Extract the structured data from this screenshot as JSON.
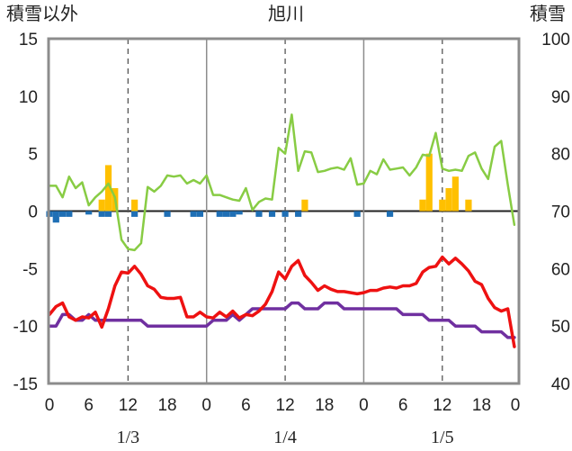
{
  "chart_data": {
    "type": "line",
    "title": "旭川",
    "left_axis_label": "積雪以外",
    "right_axis_label": "積雪",
    "left_ylim": [
      -15,
      15
    ],
    "left_yticks": [
      "15",
      "10",
      "5",
      "0",
      "-5",
      "-10",
      "-15"
    ],
    "right_ylim": [
      40,
      100
    ],
    "right_yticks": [
      "100",
      "90",
      "80",
      "70",
      "60",
      "50",
      "40"
    ],
    "xlim": [
      0,
      71
    ],
    "x_tick_labels": [
      "0",
      "6",
      "12",
      "18",
      "0",
      "6",
      "12",
      "18",
      "0",
      "6",
      "12",
      "18",
      "0"
    ],
    "x_tick_hours": [
      0,
      6,
      12,
      18,
      24,
      30,
      36,
      42,
      48,
      54,
      60,
      66,
      72
    ],
    "day_labels": [
      {
        "label": "1/3",
        "hour": 12
      },
      {
        "label": "1/4",
        "hour": 36
      },
      {
        "label": "1/5",
        "hour": 60
      }
    ],
    "grid": "dashed vertical at 12h, solid vertical at day boundaries",
    "colors": {
      "temperature": "#ee1111",
      "snow_depth": "#7030a0",
      "wind_speed": "#88cc44",
      "snowfall": "#ffc000",
      "precip_neg": "#1f6fb5"
    },
    "temperature": [
      -9,
      -8.3,
      -8,
      -9.2,
      -9.5,
      -9.2,
      -9.3,
      -8.8,
      -10.1,
      -8.5,
      -6.5,
      -5.3,
      -5.4,
      -4.8,
      -5.5,
      -6.5,
      -6.8,
      -7.5,
      -7.6,
      -7.6,
      -7.5,
      -9.2,
      -9.2,
      -8.8,
      -9.2,
      -9.3,
      -8.8,
      -9.2,
      -8.7,
      -9.3,
      -9,
      -9.1,
      -8.7,
      -8.1,
      -7,
      -5.3,
      -5.9,
      -4.8,
      -4.3,
      -5.6,
      -6.2,
      -6.9,
      -6.5,
      -6.8,
      -7,
      -7,
      -7.1,
      -7.2,
      -7.1,
      -6.9,
      -6.9,
      -6.7,
      -6.6,
      -6.7,
      -6.5,
      -6.5,
      -6.3,
      -5.3,
      -4.9,
      -4.8,
      -4,
      -4.6,
      -4.1,
      -4.6,
      -5.2,
      -6.1,
      -6.4,
      -7.6,
      -8.4,
      -8.7,
      -8.5,
      -11.8
    ],
    "snow_depth": [
      50,
      50,
      52,
      52,
      51,
      51,
      52,
      51,
      51,
      51,
      51,
      51,
      51,
      51,
      51,
      50,
      50,
      50,
      50,
      50,
      50,
      50,
      50,
      50,
      50,
      51,
      51,
      51,
      52,
      51,
      52,
      53,
      53,
      53,
      53,
      53,
      53,
      54,
      54,
      53,
      53,
      53,
      54,
      54,
      54,
      53,
      53,
      53,
      53,
      53,
      53,
      53,
      53,
      53,
      52,
      52,
      52,
      52,
      51,
      51,
      51,
      51,
      50,
      50,
      50,
      50,
      49,
      49,
      49,
      49,
      48,
      48
    ],
    "wind_speed": [
      2.2,
      2.2,
      1.2,
      3,
      2,
      2.5,
      0.5,
      1.2,
      1.7,
      2.4,
      1.2,
      -2.5,
      -3.3,
      -3.4,
      -2.8,
      2.1,
      1.7,
      2.2,
      3.1,
      3,
      3.1,
      2.4,
      2.7,
      2.4,
      3.1,
      1.4,
      1.4,
      1.2,
      1,
      0.9,
      2,
      0.1,
      0.8,
      1.1,
      1,
      5.5,
      5,
      8.4,
      3.5,
      5.2,
      5.1,
      3.4,
      3.5,
      3.7,
      3.8,
      3.6,
      4.6,
      2.3,
      2.4,
      3.5,
      3.2,
      4.5,
      3.6,
      3.7,
      3.8,
      3.1,
      3.8,
      4.9,
      4.8,
      6.8,
      3.7,
      3.5,
      3.6,
      3.5,
      4.8,
      5.1,
      3.7,
      2.8,
      5.6,
      6.1,
      2.3,
      -1.2
    ],
    "snowfall": [
      0,
      0,
      0,
      0,
      0,
      0,
      0,
      0,
      1,
      4,
      2,
      0,
      0,
      1,
      0,
      0,
      0,
      0,
      0,
      0,
      0,
      0,
      0,
      0,
      0,
      0,
      0,
      0,
      0,
      0,
      0,
      0,
      0,
      0,
      0,
      0,
      0,
      0,
      0,
      1,
      0,
      0,
      0,
      0,
      0,
      0,
      0,
      0,
      0,
      0,
      0,
      0,
      0,
      0,
      0,
      0,
      0,
      1,
      5,
      0,
      1,
      2,
      3,
      0,
      1,
      0,
      0,
      0,
      0,
      0,
      0,
      0
    ],
    "precip_neg": [
      -0.5,
      -1,
      -0.5,
      -0.5,
      0,
      0,
      -0.3,
      0,
      -0.5,
      -0.5,
      0,
      0,
      0,
      -0.5,
      0,
      0,
      0,
      0,
      -0.5,
      0,
      0,
      0,
      -0.5,
      -0.5,
      0,
      0,
      -0.5,
      -0.5,
      -0.5,
      -0.3,
      0,
      0,
      -0.5,
      0,
      -0.5,
      0,
      -0.5,
      0,
      -0.5,
      0,
      0,
      0,
      0,
      0,
      0,
      0,
      0,
      -0.5,
      0,
      0,
      0,
      0,
      -0.5,
      0,
      0,
      0,
      0,
      0,
      0,
      0,
      0,
      0,
      0,
      0,
      0,
      0,
      0,
      0,
      0,
      0,
      0,
      0
    ]
  }
}
